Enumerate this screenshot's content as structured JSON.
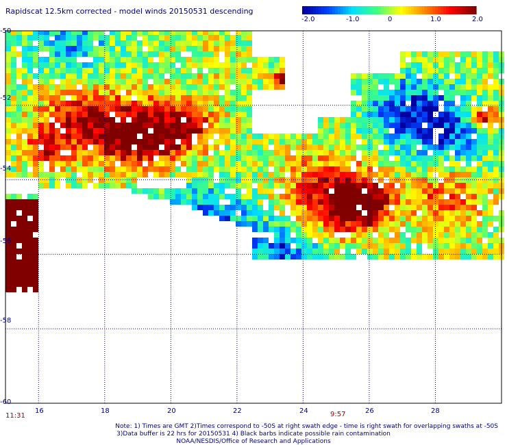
{
  "chart_data": {
    "type": "heatmap",
    "title": "Rapidscat 12.5km corrected - model winds 20150531 descending",
    "colorbar": {
      "range": [
        -2.0,
        2.0
      ],
      "tick_labels": [
        "-2.0",
        "-1.0",
        "0",
        "1.0",
        "2.0"
      ],
      "colors": [
        "#0000a0",
        "#0040ff",
        "#00e0ff",
        "#40ff80",
        "#ffff00",
        "#ff8000",
        "#ff0000",
        "#800000"
      ]
    },
    "x_ticks": [
      "16",
      "18",
      "20",
      "22",
      "24",
      "26",
      "28"
    ],
    "y_ticks": [
      "-50",
      "-52",
      "-54",
      "-56",
      "-58",
      "-60"
    ],
    "xlim": [
      15,
      30
    ],
    "ylim": [
      -60,
      -50
    ],
    "grid": true,
    "time_labels": [
      {
        "text": "11:31",
        "lon": 15.3
      },
      {
        "text": "9:57",
        "lon": 25.0
      }
    ],
    "swath_regions": [
      {
        "name": "upper-left swath",
        "lon_range": [
          15,
          22.5
        ],
        "lat_range": [
          -50,
          -53.9
        ]
      },
      {
        "name": "far-left strip",
        "lon_range": [
          15,
          16
        ],
        "lat_range": [
          -54.4,
          -57
        ]
      },
      {
        "name": "center band",
        "lon_range": [
          16,
          24
        ],
        "lat_range": [
          -53.9,
          -55.5
        ]
      },
      {
        "name": "right swath",
        "lon_range": [
          22.5,
          30
        ],
        "lat_range": [
          -50.5,
          -56.2
        ]
      }
    ]
  },
  "footer": {
    "note_line1": "Note: 1) Times are GMT 2)Times correspond to -50S at right swath edge - time is right swath for overlapping swaths at -50S",
    "note_line2": "3)Data buffer is 22 hrs for 20150531 4) Black barbs indicate possible rain contamination",
    "note_line3": "NOAA/NESDIS/Office of Research and Applications"
  }
}
